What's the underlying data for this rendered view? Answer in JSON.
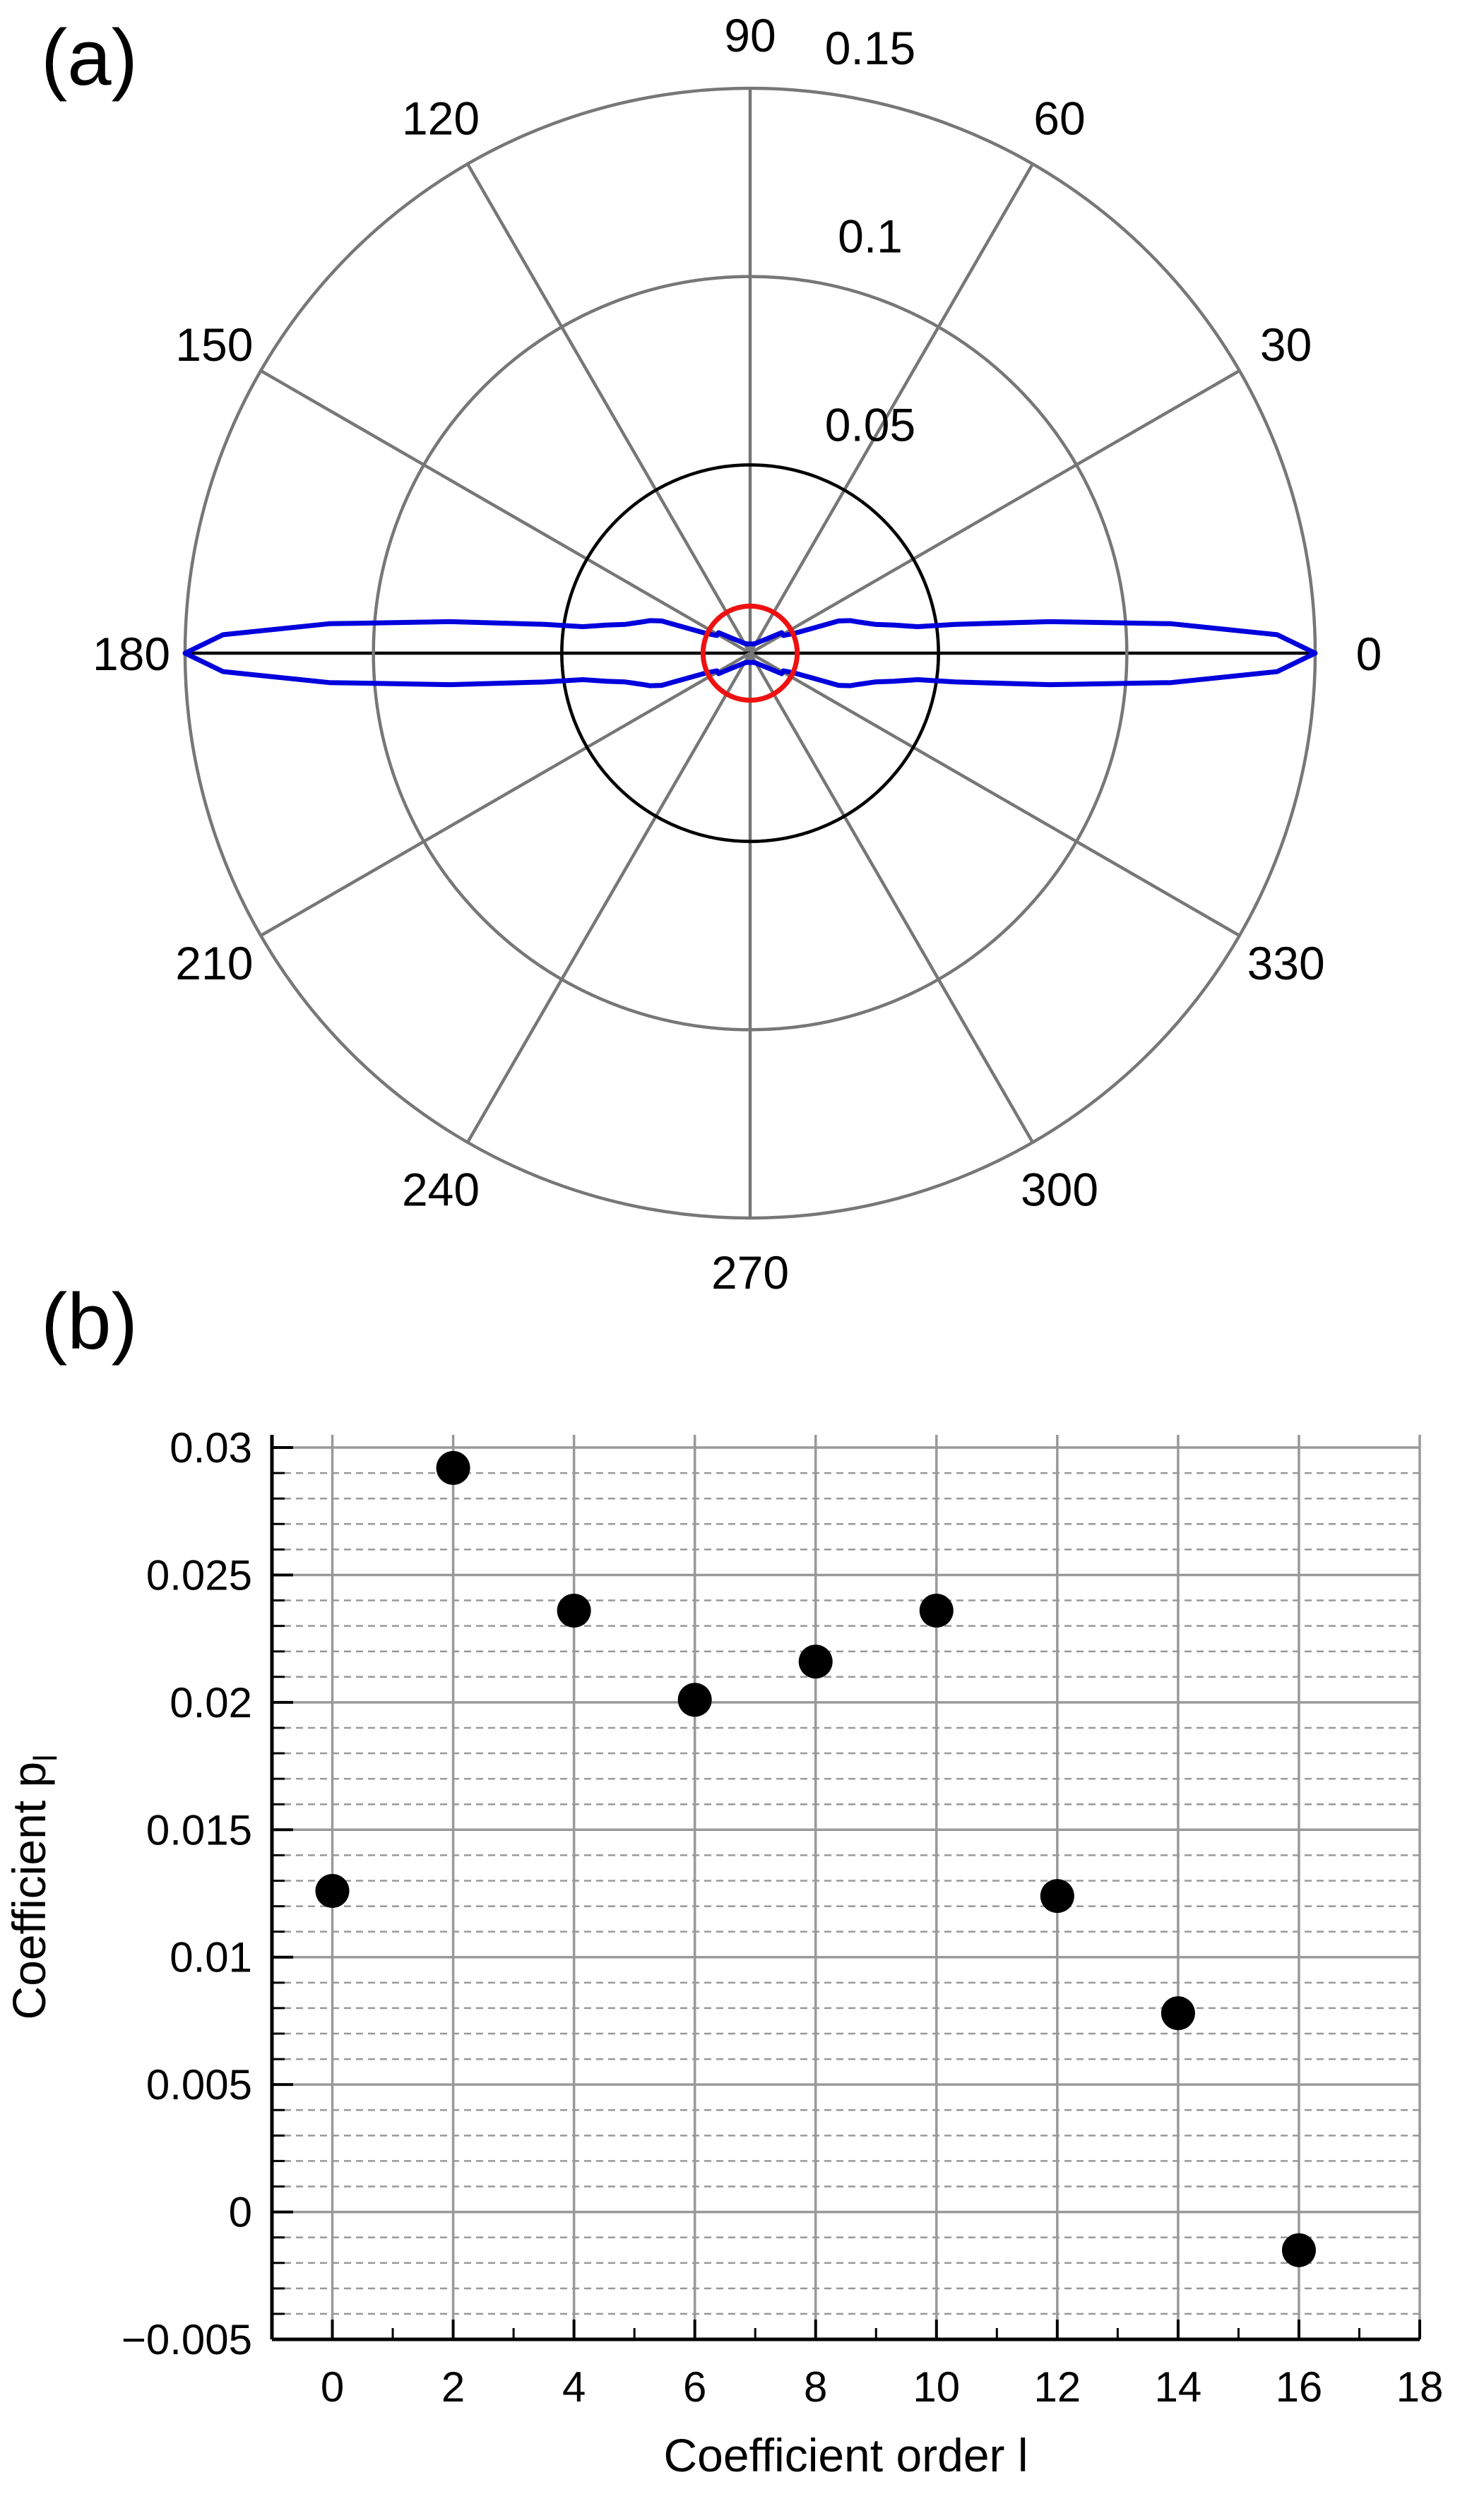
{
  "figure": {
    "panel_a_label": "(a)",
    "panel_b_label": "(b)"
  },
  "chart_data": [
    {
      "type": "polar",
      "panel": "(a)",
      "angle_ticks": [
        "0",
        "30",
        "60",
        "90",
        "120",
        "150",
        "180",
        "210",
        "240",
        "270",
        "300",
        "330"
      ],
      "radial_ticks": [
        {
          "value": 0.05,
          "label": "0.05"
        },
        {
          "value": 0.1,
          "label": "0.1"
        },
        {
          "value": 0.15,
          "label": "0.15"
        }
      ],
      "rlim": [
        0,
        0.15
      ],
      "grid": true,
      "series": [
        {
          "color": "#0000dd",
          "points": [
            {
              "theta": 0,
              "r": 0.15
            },
            {
              "theta": 2,
              "r": 0.14
            },
            {
              "theta": 4,
              "r": 0.112
            },
            {
              "theta": 6,
              "r": 0.08
            },
            {
              "theta": 8,
              "r": 0.055
            },
            {
              "theta": 9,
              "r": 0.045
            },
            {
              "theta": 11,
              "r": 0.039
            },
            {
              "theta": 13,
              "r": 0.034
            },
            {
              "theta": 16,
              "r": 0.03
            },
            {
              "theta": 18,
              "r": 0.028
            },
            {
              "theta": 20,
              "r": 0.025
            },
            {
              "theta": 24,
              "r": 0.013
            },
            {
              "theta": 28,
              "r": 0.01
            },
            {
              "theta": 33,
              "r": 0.01
            },
            {
              "theta": 40,
              "r": 0.006
            },
            {
              "theta": 50,
              "r": 0.004
            },
            {
              "theta": 60,
              "r": 0.003
            },
            {
              "theta": 75,
              "r": 0.0025
            },
            {
              "theta": 90,
              "r": 0.0025
            }
          ]
        },
        {
          "color": "#ee1111",
          "constant_r": 0.0125
        }
      ],
      "reference_circle": {
        "r": 0.05,
        "color": "#000000"
      }
    },
    {
      "type": "scatter",
      "panel": "(b)",
      "x": [
        0,
        2,
        4,
        6,
        8,
        10,
        12,
        14,
        16
      ],
      "y": [
        0.0126,
        0.0292,
        0.0236,
        0.0201,
        0.0216,
        0.0236,
        0.0124,
        0.0078,
        -0.0015
      ],
      "xlabel": "Coefficient order l",
      "ylabel_main": "Coefficient p",
      "ylabel_sub": "l",
      "xlim": [
        -1,
        18
      ],
      "ylim": [
        -0.005,
        0.0305
      ],
      "xticks": [
        0,
        2,
        4,
        6,
        8,
        10,
        12,
        14,
        16,
        18
      ],
      "xtick_labels": [
        "0",
        "2",
        "4",
        "6",
        "8",
        "10",
        "12",
        "14",
        "16",
        "18"
      ],
      "yticks": [
        -0.005,
        0,
        0.005,
        0.01,
        0.015,
        0.02,
        0.025,
        0.03
      ],
      "ytick_labels": [
        "−0.005",
        "0",
        "0.005",
        "0.01",
        "0.015",
        "0.02",
        "0.025",
        "0.03"
      ],
      "minor_y_step": 0.001,
      "grid": true,
      "marker_color": "#000000"
    }
  ]
}
